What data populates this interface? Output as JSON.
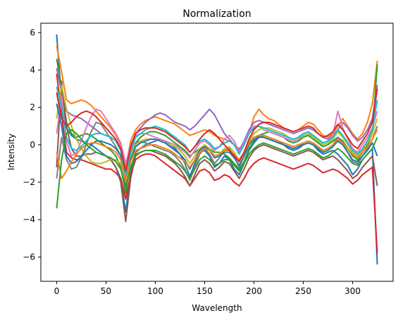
{
  "chart_data": {
    "type": "line",
    "title": "Normalization",
    "xlabel": "Wavelength",
    "ylabel": "Intensity",
    "xlim": [
      -16,
      341
    ],
    "ylim": [
      -7.3,
      6.5
    ],
    "xticks": [
      0,
      50,
      100,
      150,
      200,
      250,
      300
    ],
    "yticks": [
      -6,
      -4,
      -2,
      0,
      2,
      4,
      6
    ],
    "ytick_labels": [
      "−6",
      "−4",
      "−2",
      "0",
      "2",
      "4",
      "6"
    ],
    "grid": false,
    "legend": "none",
    "colors": [
      "#1f77b4",
      "#ff7f0e",
      "#2ca02c",
      "#d62728",
      "#9467bd",
      "#8c564b",
      "#e377c2",
      "#7f7f7f",
      "#bcbd22",
      "#17becf"
    ],
    "x": [
      0,
      5,
      10,
      15,
      20,
      25,
      30,
      35,
      40,
      45,
      50,
      55,
      60,
      65,
      70,
      75,
      80,
      85,
      90,
      95,
      100,
      105,
      110,
      115,
      120,
      125,
      130,
      135,
      140,
      145,
      150,
      155,
      160,
      165,
      170,
      175,
      180,
      185,
      190,
      195,
      200,
      205,
      210,
      215,
      220,
      225,
      230,
      235,
      240,
      245,
      250,
      255,
      260,
      265,
      270,
      275,
      280,
      285,
      290,
      295,
      300,
      305,
      310,
      315,
      320,
      325
    ],
    "series": [
      {
        "values": [
          5.9,
          2.4,
          0.9,
          0.5,
          0.3,
          0.2,
          0.1,
          0.0,
          -0.2,
          -0.4,
          -0.6,
          -0.8,
          -1.2,
          -1.8,
          -3.6,
          -1.5,
          -0.4,
          -0.2,
          0.0,
          0.1,
          0.2,
          0.3,
          0.2,
          0.0,
          -0.2,
          -0.5,
          -1.0,
          -1.7,
          -1.0,
          -0.4,
          -0.3,
          -0.6,
          -1.2,
          -1.0,
          -0.6,
          -0.8,
          -1.3,
          -1.6,
          -1.0,
          -0.3,
          0.1,
          0.4,
          0.5,
          0.4,
          0.3,
          0.2,
          0.0,
          -0.2,
          -0.3,
          -0.2,
          0.0,
          0.1,
          0.0,
          -0.3,
          -0.5,
          -0.4,
          -0.3,
          -0.5,
          -0.8,
          -1.1,
          -1.6,
          -1.3,
          -0.8,
          -0.5,
          -0.2,
          -6.4
        ]
      },
      {
        "values": [
          5.3,
          3.9,
          2.4,
          2.2,
          2.3,
          2.4,
          2.3,
          2.1,
          1.8,
          1.5,
          1.2,
          0.9,
          0.5,
          0.0,
          -1.2,
          0.2,
          0.8,
          1.1,
          1.3,
          1.4,
          1.5,
          1.4,
          1.3,
          1.2,
          1.1,
          0.9,
          0.7,
          0.5,
          0.6,
          0.7,
          0.8,
          0.7,
          0.5,
          0.4,
          0.3,
          0.2,
          0.0,
          -0.2,
          0.0,
          0.6,
          1.5,
          1.9,
          1.6,
          1.4,
          1.3,
          1.1,
          0.9,
          0.8,
          0.7,
          0.8,
          1.0,
          1.2,
          1.1,
          0.8,
          0.5,
          0.4,
          0.6,
          1.0,
          1.4,
          1.0,
          0.6,
          0.3,
          0.6,
          1.2,
          2.2,
          4.5
        ]
      },
      {
        "values": [
          4.6,
          3.1,
          1.2,
          0.6,
          0.4,
          0.5,
          0.6,
          0.5,
          0.3,
          0.1,
          -0.1,
          -0.3,
          -0.6,
          -1.2,
          -2.6,
          -0.8,
          0.1,
          0.4,
          0.6,
          0.7,
          0.7,
          0.6,
          0.5,
          0.3,
          0.1,
          -0.1,
          -0.3,
          -0.6,
          -0.4,
          -0.2,
          -0.1,
          -0.2,
          -0.4,
          -0.4,
          -0.5,
          -0.7,
          -1.0,
          -1.3,
          -0.9,
          -0.2,
          0.2,
          0.5,
          0.6,
          0.7,
          0.6,
          0.5,
          0.4,
          0.2,
          0.1,
          0.2,
          0.4,
          0.5,
          0.3,
          0.1,
          -0.1,
          0.0,
          0.2,
          0.4,
          0.2,
          -0.2,
          -0.6,
          -0.8,
          -0.4,
          0.0,
          0.6,
          4.3
        ]
      },
      {
        "values": [
          3.8,
          1.6,
          -0.4,
          -0.7,
          -0.8,
          -0.8,
          -0.9,
          -1.0,
          -1.1,
          -1.2,
          -1.3,
          -1.3,
          -1.5,
          -1.8,
          -2.9,
          -1.6,
          -0.8,
          -0.6,
          -0.5,
          -0.5,
          -0.6,
          -0.8,
          -1.0,
          -1.2,
          -1.4,
          -1.6,
          -1.8,
          -2.2,
          -1.8,
          -1.4,
          -1.3,
          -1.5,
          -1.9,
          -1.8,
          -1.6,
          -1.7,
          -2.0,
          -2.2,
          -1.8,
          -1.3,
          -1.0,
          -0.8,
          -0.7,
          -0.8,
          -0.9,
          -1.0,
          -1.1,
          -1.2,
          -1.3,
          -1.2,
          -1.1,
          -1.0,
          -1.1,
          -1.3,
          -1.5,
          -1.4,
          -1.3,
          -1.4,
          -1.6,
          -1.8,
          -2.1,
          -1.9,
          -1.6,
          -1.4,
          -1.2,
          -5.8
        ]
      },
      {
        "values": [
          4.1,
          2.8,
          1.8,
          1.6,
          1.5,
          1.4,
          1.2,
          1.0,
          0.8,
          0.6,
          0.5,
          0.4,
          0.2,
          -0.3,
          -1.6,
          -0.2,
          0.6,
          0.9,
          1.2,
          1.4,
          1.6,
          1.7,
          1.6,
          1.4,
          1.2,
          1.1,
          1.0,
          0.8,
          1.0,
          1.3,
          1.6,
          1.9,
          1.6,
          1.1,
          0.6,
          0.3,
          0.0,
          -0.3,
          0.2,
          0.8,
          1.2,
          1.3,
          1.2,
          1.1,
          1.0,
          0.9,
          0.8,
          0.7,
          0.6,
          0.7,
          0.8,
          0.9,
          0.8,
          0.6,
          0.4,
          0.3,
          0.5,
          0.8,
          1.2,
          0.9,
          0.5,
          0.2,
          0.4,
          0.8,
          1.4,
          3.2
        ]
      },
      {
        "values": [
          -1.2,
          3.4,
          1.0,
          -0.2,
          -0.6,
          -0.6,
          -0.5,
          -0.5,
          -0.4,
          -0.5,
          -0.6,
          -0.8,
          -1.2,
          -2.0,
          -4.1,
          -1.8,
          -0.6,
          -0.4,
          -0.3,
          -0.3,
          -0.4,
          -0.5,
          -0.6,
          -0.8,
          -1.0,
          -1.3,
          -1.7,
          -2.2,
          -1.6,
          -1.0,
          -0.8,
          -1.0,
          -1.4,
          -1.2,
          -0.9,
          -1.0,
          -1.4,
          -1.8,
          -1.3,
          -0.7,
          -0.3,
          -0.1,
          0.0,
          -0.1,
          -0.2,
          -0.3,
          -0.4,
          -0.5,
          -0.6,
          -0.5,
          -0.4,
          -0.3,
          -0.4,
          -0.6,
          -0.8,
          -0.7,
          -0.6,
          -0.8,
          -1.1,
          -1.4,
          -1.8,
          -1.6,
          -1.2,
          -0.9,
          -0.6,
          -2.2
        ]
      },
      {
        "values": [
          0.6,
          2.6,
          0.2,
          -0.6,
          -0.4,
          0.2,
          0.9,
          1.5,
          1.9,
          1.8,
          1.4,
          1.0,
          0.6,
          0.1,
          -1.0,
          0.0,
          0.5,
          0.6,
          0.6,
          0.5,
          0.4,
          0.3,
          0.2,
          0.1,
          0.0,
          -0.2,
          -0.4,
          -0.7,
          -0.3,
          0.1,
          0.2,
          0.0,
          -0.3,
          -0.1,
          0.3,
          0.5,
          0.2,
          -0.4,
          0.1,
          0.7,
          1.0,
          1.0,
          0.8,
          0.7,
          0.6,
          0.5,
          0.4,
          0.3,
          0.2,
          0.3,
          0.5,
          0.6,
          0.5,
          0.3,
          0.1,
          0.2,
          0.5,
          1.8,
          0.9,
          0.3,
          -0.2,
          -0.4,
          0.0,
          0.4,
          0.9,
          1.8
        ]
      },
      {
        "values": [
          -1.8,
          0.4,
          -0.8,
          -1.3,
          -1.2,
          -0.7,
          0.0,
          0.7,
          1.2,
          1.1,
          0.7,
          0.3,
          -0.1,
          -0.6,
          -1.9,
          -0.6,
          0.1,
          0.2,
          0.1,
          0.0,
          -0.1,
          -0.2,
          -0.3,
          -0.4,
          -0.6,
          -0.9,
          -1.3,
          -1.9,
          -1.2,
          -0.5,
          -0.2,
          -0.5,
          -1.0,
          -0.7,
          -0.3,
          -0.2,
          -0.6,
          -1.2,
          -0.6,
          0.0,
          0.4,
          0.5,
          0.4,
          0.3,
          0.2,
          0.1,
          0.0,
          -0.1,
          -0.2,
          -0.1,
          0.1,
          0.2,
          0.1,
          -0.1,
          -0.3,
          -0.2,
          0.0,
          0.4,
          0.1,
          -0.4,
          -0.9,
          -1.0,
          -0.6,
          -0.2,
          0.3,
          1.0
        ]
      },
      {
        "values": [
          1.4,
          3.2,
          1.9,
          1.0,
          0.3,
          -0.2,
          -0.6,
          -0.9,
          -1.0,
          -1.0,
          -0.9,
          -0.8,
          -0.8,
          -1.0,
          -1.7,
          -0.6,
          0.0,
          0.2,
          0.3,
          0.3,
          0.3,
          0.2,
          0.1,
          0.0,
          -0.1,
          -0.3,
          -0.6,
          -1.0,
          -0.6,
          -0.2,
          0.0,
          -0.2,
          -0.6,
          -0.5,
          -0.2,
          -0.1,
          -0.4,
          -0.9,
          -0.4,
          0.2,
          0.6,
          0.8,
          0.9,
          0.9,
          0.8,
          0.7,
          0.6,
          0.4,
          0.3,
          0.4,
          0.5,
          0.6,
          0.4,
          0.2,
          0.0,
          0.1,
          0.3,
          0.7,
          0.4,
          0.0,
          -0.4,
          -0.6,
          -0.3,
          0.1,
          0.6,
          1.4
        ]
      },
      {
        "values": [
          3.1,
          2.0,
          0.4,
          -0.2,
          -0.3,
          -0.1,
          0.2,
          0.5,
          0.6,
          0.6,
          0.5,
          0.4,
          0.2,
          -0.3,
          -1.9,
          -0.4,
          0.4,
          0.6,
          0.8,
          0.9,
          1.0,
          0.9,
          0.8,
          0.6,
          0.4,
          0.2,
          0.0,
          -0.4,
          -0.1,
          0.2,
          0.3,
          0.1,
          -0.2,
          -0.1,
          0.1,
          0.2,
          0.0,
          -0.5,
          0.0,
          0.6,
          0.9,
          1.0,
          0.9,
          0.8,
          0.7,
          0.6,
          0.5,
          0.4,
          0.3,
          0.4,
          0.6,
          0.7,
          0.5,
          0.3,
          0.1,
          0.2,
          0.4,
          0.8,
          0.5,
          0.1,
          -0.3,
          -0.5,
          -0.2,
          0.2,
          0.8,
          2.4
        ]
      },
      {
        "values": [
          2.2,
          1.0,
          -0.6,
          -1.0,
          -0.9,
          -0.6,
          -0.3,
          0.0,
          0.2,
          0.2,
          0.1,
          0.0,
          -0.2,
          -0.6,
          -2.2,
          -0.8,
          -0.1,
          0.1,
          0.2,
          0.3,
          0.3,
          0.2,
          0.1,
          -0.1,
          -0.3,
          -0.5,
          -0.8,
          -1.3,
          -0.8,
          -0.3,
          -0.1,
          -0.3,
          -0.7,
          -0.6,
          -0.4,
          -0.4,
          -0.7,
          -1.1,
          -0.6,
          0.0,
          0.3,
          0.4,
          0.4,
          0.3,
          0.2,
          0.1,
          0.0,
          -0.1,
          -0.2,
          -0.1,
          0.0,
          0.1,
          0.0,
          -0.2,
          -0.4,
          -0.3,
          -0.1,
          0.2,
          0.0,
          -0.4,
          -0.8,
          -0.9,
          -0.6,
          -0.3,
          0.1,
          -0.6
        ]
      },
      {
        "values": [
          -0.4,
          -1.8,
          -1.4,
          -0.9,
          -0.5,
          -0.2,
          0.0,
          0.1,
          0.1,
          0.0,
          -0.1,
          -0.2,
          -0.4,
          -0.8,
          -2.0,
          -0.9,
          -0.3,
          -0.2,
          -0.1,
          0.0,
          0.0,
          -0.1,
          -0.2,
          -0.3,
          -0.5,
          -0.7,
          -0.9,
          -1.2,
          -0.8,
          -0.4,
          -0.2,
          -0.3,
          -0.6,
          -0.5,
          -0.3,
          -0.3,
          -0.5,
          -0.8,
          -0.4,
          0.1,
          0.4,
          0.5,
          0.5,
          0.4,
          0.3,
          0.2,
          0.1,
          0.0,
          -0.1,
          0.0,
          0.1,
          0.2,
          0.1,
          -0.1,
          -0.3,
          -0.2,
          0.0,
          0.3,
          0.1,
          -0.2,
          -0.5,
          -0.7,
          -0.4,
          -0.1,
          0.3,
          0.8
        ]
      },
      {
        "values": [
          -3.4,
          -0.8,
          0.6,
          0.8,
          0.6,
          0.3,
          0.0,
          -0.2,
          -0.4,
          -0.5,
          -0.6,
          -0.7,
          -0.9,
          -1.3,
          -2.4,
          -1.2,
          -0.5,
          -0.4,
          -0.3,
          -0.3,
          -0.3,
          -0.4,
          -0.5,
          -0.7,
          -0.9,
          -1.1,
          -1.4,
          -1.8,
          -1.3,
          -0.8,
          -0.6,
          -0.8,
          -1.1,
          -1.0,
          -0.8,
          -0.8,
          -1.1,
          -1.4,
          -1.0,
          -0.5,
          -0.2,
          0.0,
          0.1,
          0.0,
          -0.1,
          -0.2,
          -0.3,
          -0.4,
          -0.5,
          -0.4,
          -0.3,
          -0.2,
          -0.3,
          -0.5,
          -0.7,
          -0.6,
          -0.4,
          -0.2,
          -0.4,
          -0.7,
          -1.0,
          -1.1,
          -0.8,
          -0.5,
          -0.2,
          0.4
        ]
      },
      {
        "values": [
          2.8,
          1.4,
          1.0,
          1.2,
          1.5,
          1.7,
          1.8,
          1.7,
          1.5,
          1.2,
          0.9,
          0.6,
          0.3,
          -0.2,
          -1.4,
          -0.1,
          0.6,
          0.8,
          0.9,
          0.9,
          0.9,
          0.8,
          0.7,
          0.5,
          0.3,
          0.1,
          -0.1,
          -0.4,
          -0.1,
          0.3,
          0.6,
          0.8,
          0.6,
          0.3,
          0.0,
          -0.3,
          -0.6,
          -0.9,
          -0.4,
          0.3,
          0.8,
          1.1,
          1.2,
          1.2,
          1.1,
          1.0,
          0.9,
          0.8,
          0.7,
          0.8,
          0.9,
          1.0,
          0.9,
          0.6,
          0.4,
          0.5,
          0.7,
          1.1,
          0.8,
          0.4,
          0.0,
          -0.2,
          0.2,
          0.6,
          1.2,
          3.0
        ]
      }
    ]
  }
}
